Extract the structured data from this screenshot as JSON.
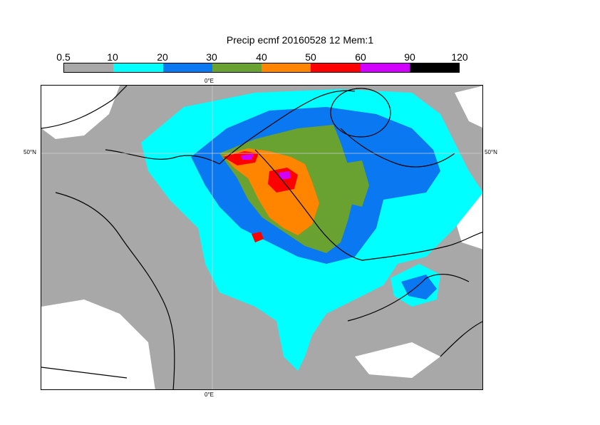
{
  "title": "Precip ecmf 20160528 12 Mem:1",
  "colorbar": {
    "labels": [
      "0.5",
      "10",
      "20",
      "30",
      "40",
      "50",
      "60",
      "90",
      "120"
    ],
    "colors": [
      "#a8a8a8",
      "#00ffff",
      "#0a78f0",
      "#6aa232",
      "#ff8400",
      "#ff0000",
      "#d200ff",
      "#000000"
    ]
  },
  "axes": {
    "lon_top": "0°E",
    "lon_bottom": "0°E",
    "lat_left": "50°N",
    "lat_right": "50°N"
  }
}
